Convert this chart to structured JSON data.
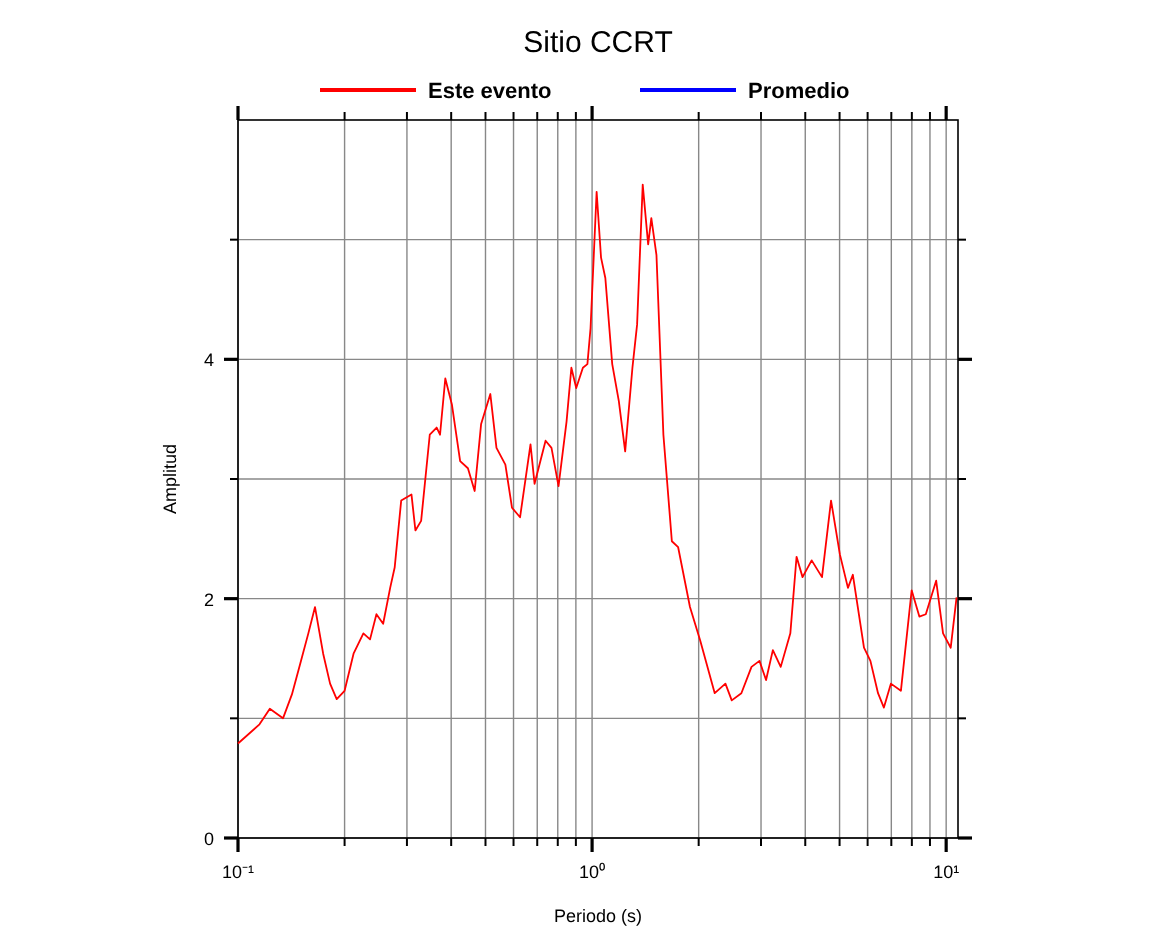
{
  "chart_data": {
    "type": "line",
    "title": "Sitio CCRT",
    "xlabel": "Periodo (s)",
    "ylabel": "Amplitud",
    "log": "x",
    "xlim": [
      0.1,
      10.8
    ],
    "ylim": [
      0,
      6
    ],
    "xticks": [
      {
        "value": 0.1,
        "label": "10⁻¹"
      },
      {
        "value": 0.2,
        "label": null
      },
      {
        "value": 0.3,
        "label": null
      },
      {
        "value": 0.4,
        "label": null
      },
      {
        "value": 0.5,
        "label": null
      },
      {
        "value": 0.6,
        "label": null
      },
      {
        "value": 0.7,
        "label": null
      },
      {
        "value": 0.8,
        "label": null
      },
      {
        "value": 0.9,
        "label": null
      },
      {
        "value": 1,
        "label": "10⁰"
      },
      {
        "value": 2,
        "label": null
      },
      {
        "value": 3,
        "label": null
      },
      {
        "value": 4,
        "label": null
      },
      {
        "value": 5,
        "label": null
      },
      {
        "value": 6,
        "label": null
      },
      {
        "value": 7,
        "label": null
      },
      {
        "value": 8,
        "label": null
      },
      {
        "value": 9,
        "label": null
      },
      {
        "value": 10,
        "label": "10¹"
      }
    ],
    "yticks": [
      0,
      {
        "value": 1,
        "label": null
      },
      2,
      {
        "value": 3,
        "label": null
      },
      4,
      {
        "value": 5,
        "label": null
      }
    ],
    "grid": true,
    "legend": "top",
    "line_style": "solid",
    "marker": "none",
    "series": [
      {
        "name": "Este evento",
        "color": "#ff0000",
        "x": [
          0.1,
          0.115,
          0.123,
          0.134,
          0.142,
          0.15,
          0.158,
          0.165,
          0.174,
          0.182,
          0.19,
          0.2,
          0.212,
          0.226,
          0.236,
          0.246,
          0.257,
          0.269,
          0.277,
          0.289,
          0.309,
          0.317,
          0.329,
          0.348,
          0.364,
          0.372,
          0.385,
          0.402,
          0.424,
          0.446,
          0.466,
          0.486,
          0.516,
          0.537,
          0.569,
          0.594,
          0.626,
          0.67,
          0.688,
          0.739,
          0.768,
          0.804,
          0.847,
          0.874,
          0.902,
          0.942,
          0.97,
          0.99,
          1.03,
          1.06,
          1.09,
          1.14,
          1.19,
          1.24,
          1.3,
          1.34,
          1.39,
          1.44,
          1.47,
          1.52,
          1.59,
          1.68,
          1.75,
          1.89,
          2.02,
          2.22,
          2.38,
          2.48,
          2.64,
          2.82,
          2.97,
          3.1,
          3.24,
          3.41,
          3.63,
          3.78,
          3.93,
          4.17,
          4.46,
          4.73,
          5.01,
          5.28,
          5.45,
          5.86,
          6.11,
          6.42,
          6.67,
          6.98,
          7.45,
          7.99,
          8.4,
          8.76,
          9.37,
          9.8,
          10.3,
          10.7
        ],
        "values": [
          0.79,
          0.95,
          1.08,
          1.0,
          1.2,
          1.46,
          1.71,
          1.93,
          1.54,
          1.29,
          1.16,
          1.23,
          1.54,
          1.71,
          1.66,
          1.87,
          1.79,
          2.09,
          2.26,
          2.82,
          2.87,
          2.57,
          2.65,
          3.37,
          3.43,
          3.37,
          3.84,
          3.62,
          3.15,
          3.09,
          2.9,
          3.46,
          3.71,
          3.26,
          3.12,
          2.76,
          2.68,
          3.29,
          2.96,
          3.32,
          3.26,
          2.94,
          3.48,
          3.93,
          3.76,
          3.93,
          3.96,
          4.26,
          5.4,
          4.85,
          4.68,
          3.96,
          3.65,
          3.23,
          3.93,
          4.29,
          5.46,
          4.96,
          5.18,
          4.87,
          3.37,
          2.48,
          2.43,
          1.93,
          1.65,
          1.21,
          1.29,
          1.15,
          1.21,
          1.43,
          1.48,
          1.32,
          1.57,
          1.43,
          1.71,
          2.35,
          2.18,
          2.32,
          2.18,
          2.82,
          2.37,
          2.09,
          2.2,
          1.59,
          1.48,
          1.21,
          1.09,
          1.29,
          1.23,
          2.07,
          1.85,
          1.87,
          2.15,
          1.71,
          1.59,
          2.01
        ]
      },
      {
        "name": "Promedio",
        "color": "#0000ff"
      }
    ]
  }
}
